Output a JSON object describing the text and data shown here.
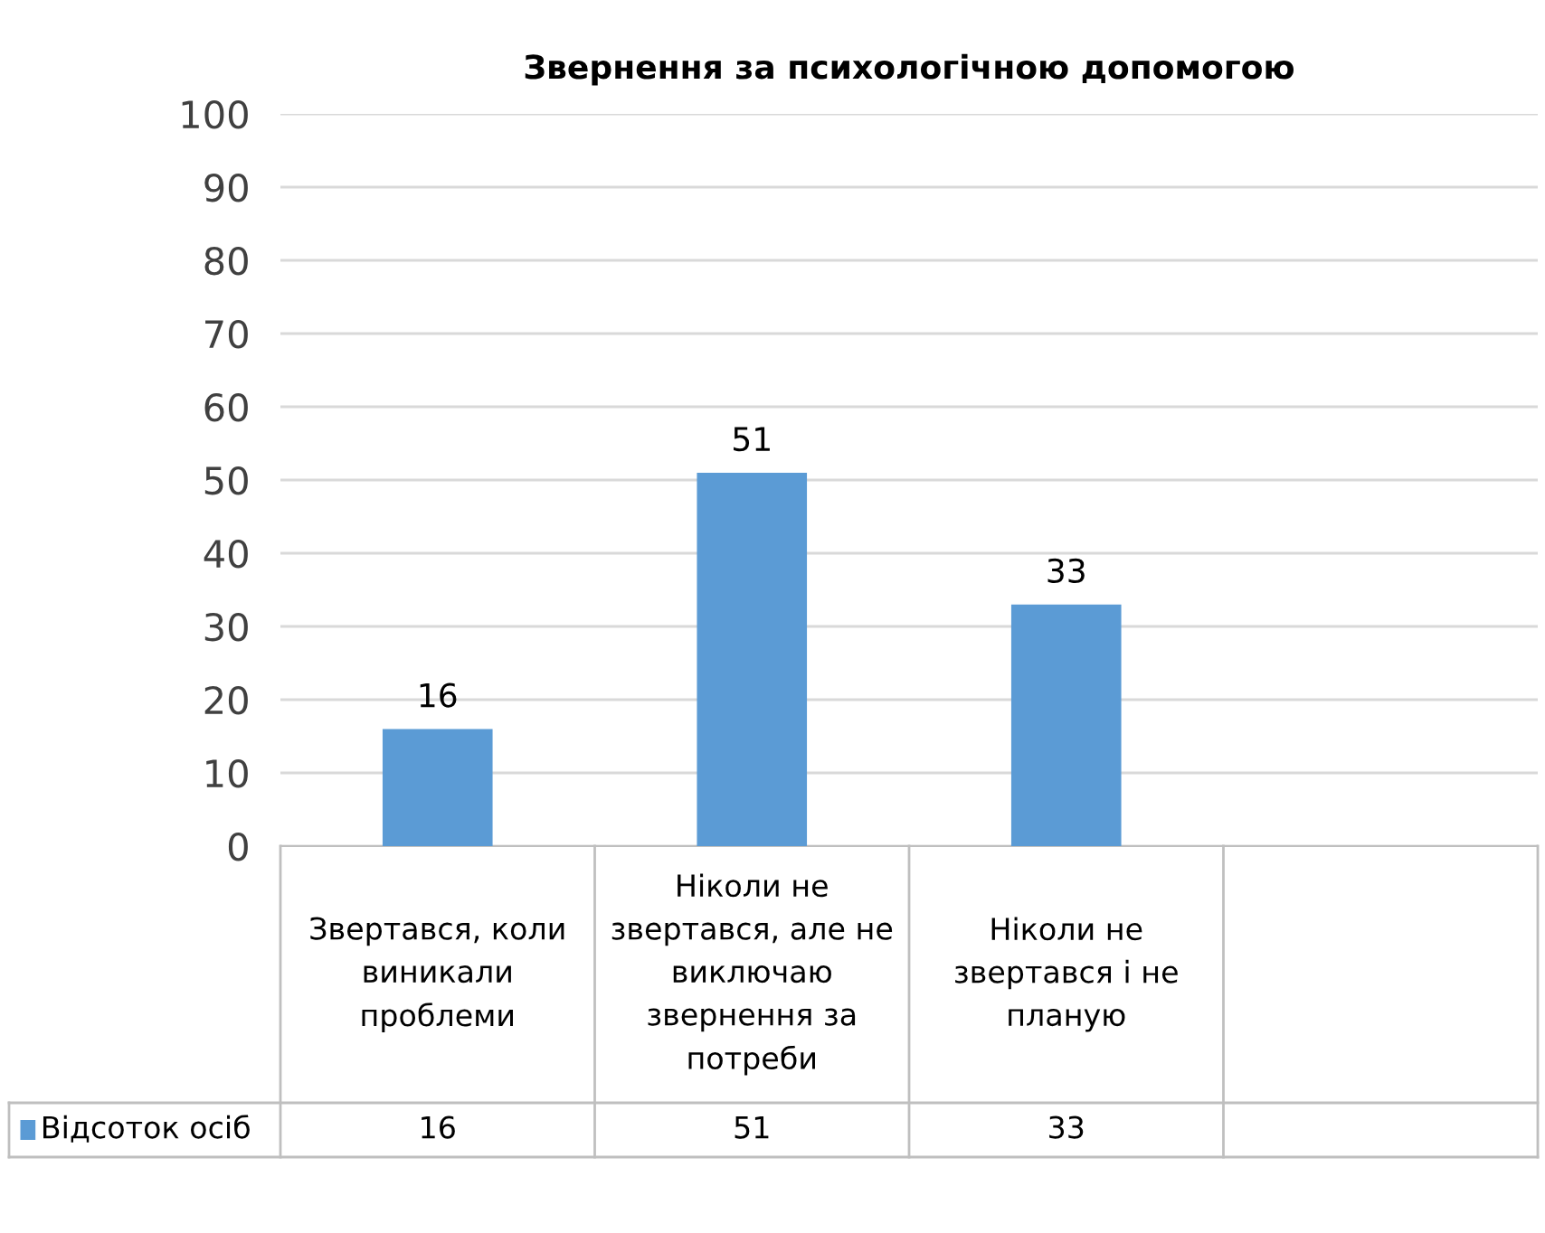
{
  "chart_data": {
    "type": "bar",
    "title": "Звернення за психологічною допомогою",
    "categories": [
      "Звертався, коли\nвиникали\nпроблеми",
      "Ніколи не\nзвертався, але не\nвиключаю\nзвернення за\nпотреби",
      "Ніколи не\nзвертався і не\nпланую",
      null
    ],
    "series": [
      {
        "name": "Відсоток осіб",
        "color": "#5b9bd5",
        "values": [
          16,
          51,
          33,
          null
        ],
        "value_labels": [
          "16",
          "51",
          "33",
          null
        ]
      }
    ],
    "ylim": [
      0,
      100
    ],
    "yticks": [
      0,
      10,
      20,
      30,
      40,
      50,
      60,
      70,
      80,
      90,
      100
    ],
    "annotations": [
      "16",
      "51",
      "33"
    ],
    "grid": "y",
    "data_labels": true,
    "legend": "bottom left"
  }
}
